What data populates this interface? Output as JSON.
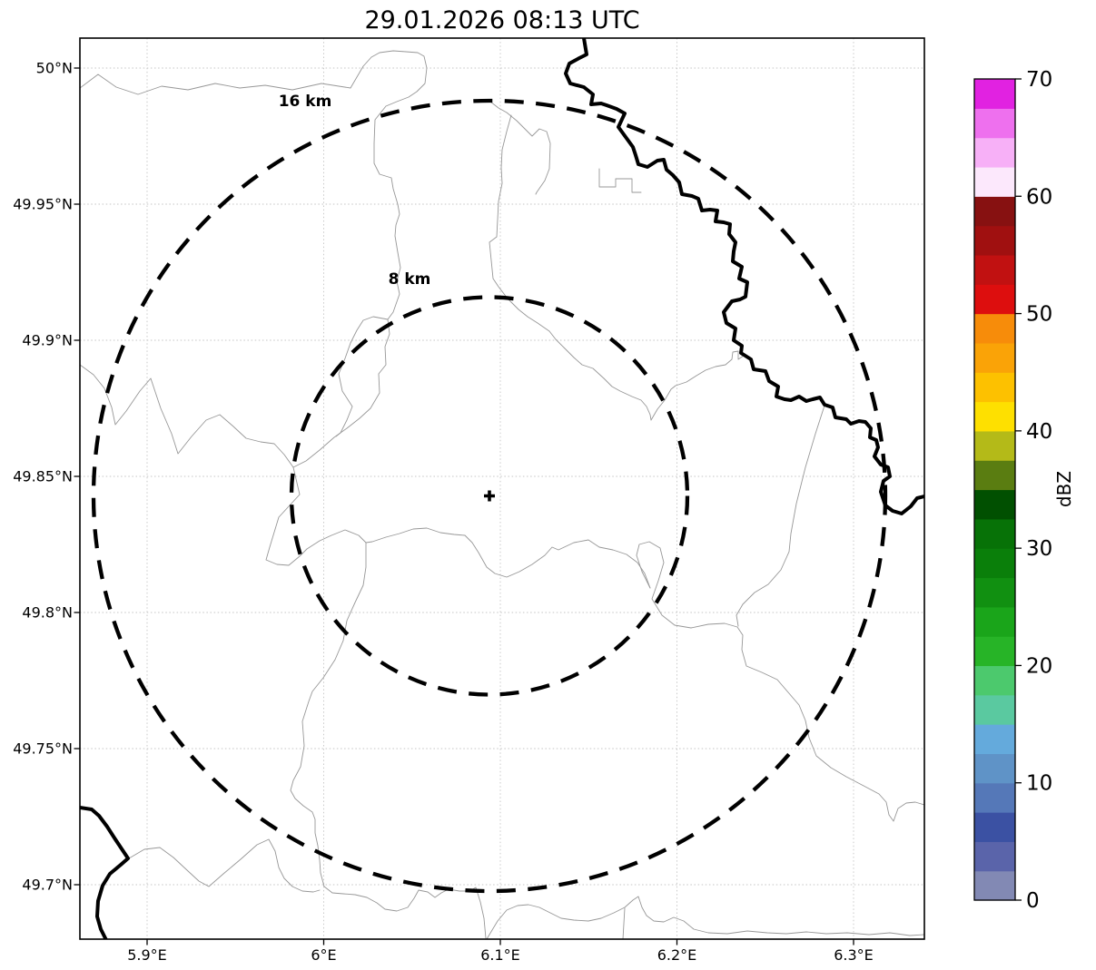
{
  "title": "29.01.2026 08:13 UTC",
  "map": {
    "range_rings": [
      {
        "label": "16 km",
        "radius_km": 16
      },
      {
        "label": "8 km",
        "radius_km": 8
      }
    ],
    "center_marker_symbol": "+"
  },
  "axes": {
    "x_ticks": [
      {
        "value": 5.9,
        "label": "5.9°E"
      },
      {
        "value": 6.0,
        "label": "6°E"
      },
      {
        "value": 6.1,
        "label": "6.1°E"
      },
      {
        "value": 6.2,
        "label": "6.2°E"
      },
      {
        "value": 6.3,
        "label": "6.3°E"
      }
    ],
    "y_ticks": [
      {
        "value": 50.0,
        "label": "50°N"
      },
      {
        "value": 49.95,
        "label": "49.95°N"
      },
      {
        "value": 49.9,
        "label": "49.9°N"
      },
      {
        "value": 49.85,
        "label": "49.85°N"
      },
      {
        "value": 49.8,
        "label": "49.8°N"
      },
      {
        "value": 49.75,
        "label": "49.75°N"
      },
      {
        "value": 49.7,
        "label": "49.7°N"
      }
    ]
  },
  "colorbar": {
    "label": "dBZ",
    "min": 0,
    "max": 70,
    "bin_size": 2.5,
    "tick_values": [
      0,
      10,
      20,
      30,
      40,
      50,
      60,
      70
    ],
    "colors_bottom_to_top": [
      "#8289b4",
      "#5a64aa",
      "#3b51a3",
      "#5578b8",
      "#5f93c7",
      "#64aadc",
      "#5ac9a0",
      "#4cc96d",
      "#27b427",
      "#1aa51a",
      "#119011",
      "#0a7f0a",
      "#077207",
      "#015001",
      "#5a7d11",
      "#b4ba18",
      "#fee000",
      "#fdc100",
      "#faa307",
      "#f78c0a",
      "#dd0e0e",
      "#c11111",
      "#a01010",
      "#871111",
      "#fce8fc",
      "#f7b0f7",
      "#ee70ee",
      "#e122e1"
    ]
  },
  "chart_data": {
    "type": "heatmap",
    "title": "29.01.2026 08:13 UTC",
    "x_tick_labels": [
      "5.9°E",
      "6°E",
      "6.1°E",
      "6.2°E",
      "6.3°E"
    ],
    "y_tick_labels": [
      "50°N",
      "49.95°N",
      "49.9°N",
      "49.85°N",
      "49.8°N",
      "49.75°N",
      "49.7°N"
    ],
    "xlim": [
      5.862,
      6.34
    ],
    "ylim": [
      49.68,
      50.011
    ],
    "grid": true,
    "values": [],
    "note": "no radar reflectivity echoes visible; only base map with borders, range rings and radar site marker",
    "colorbar": {
      "label": "dBZ",
      "range": [
        0,
        70
      ],
      "ticks": [
        0,
        10,
        20,
        30,
        40,
        50,
        60,
        70
      ],
      "bin_size": 2.5
    },
    "annotations": [
      {
        "text": "16 km",
        "type": "range-ring-label"
      },
      {
        "text": "8 km",
        "type": "range-ring-label"
      },
      {
        "text": "+",
        "type": "radar-site-marker",
        "lon_e": 6.094,
        "lat_n": 49.843
      }
    ]
  }
}
